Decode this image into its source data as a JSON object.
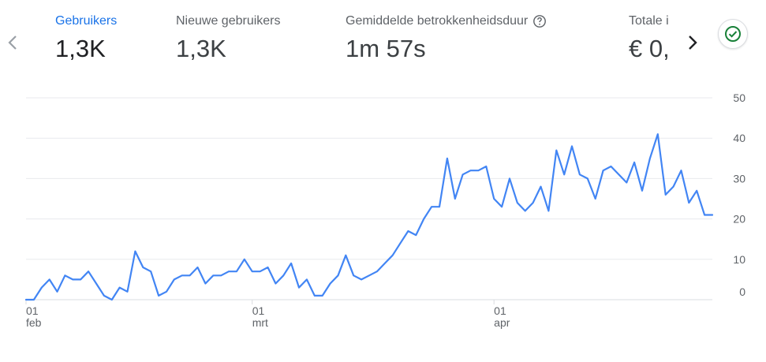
{
  "metrics": [
    {
      "label": "Gebruikers",
      "value": "1,3K",
      "active": true
    },
    {
      "label": "Nieuwe gebruikers",
      "value": "1,3K",
      "active": false
    },
    {
      "label": "Gemiddelde betrokkenheidsduur",
      "value": "1m 57s",
      "active": false,
      "help_icon": "help-circle-icon"
    },
    {
      "label": "Totale i",
      "value": "€ 0,",
      "active": false
    }
  ],
  "icons": {
    "prev": "chevron-left-icon",
    "next": "chevron-right-icon",
    "status": "check-circle-icon"
  },
  "colors": {
    "accent": "#1a73e8",
    "line": "#4285f4",
    "status_green": "#188038"
  },
  "chart_data": {
    "type": "line",
    "x_start": "2024-02-01",
    "x_ticks": [
      {
        "day": "01",
        "month": "feb",
        "date": "2024-02-01"
      },
      {
        "day": "01",
        "month": "mrt",
        "date": "2024-03-01"
      },
      {
        "day": "01",
        "month": "apr",
        "date": "2024-04-01"
      }
    ],
    "ylim": [
      0,
      50
    ],
    "yticks": [
      "50",
      "40",
      "30",
      "20",
      "10",
      "0"
    ],
    "ytick_values": [
      50,
      40,
      30,
      20,
      10,
      0
    ],
    "grid": true,
    "y_axis_position": "right",
    "series": [
      {
        "values": [
          0,
          0,
          3,
          5,
          2,
          6,
          5,
          5,
          7,
          4,
          1,
          0,
          3,
          2,
          12,
          8,
          7,
          1,
          2,
          5,
          6,
          6,
          8,
          4,
          6,
          6,
          7,
          7,
          10,
          7,
          7,
          8,
          4,
          6,
          9,
          3,
          5,
          1,
          1,
          4,
          6,
          11,
          6,
          5,
          6,
          7,
          9,
          11,
          14,
          17,
          16,
          20,
          23,
          23,
          35,
          25,
          31,
          32,
          32,
          33,
          25,
          23,
          30,
          24,
          22,
          24,
          28,
          22,
          37,
          31,
          38,
          31,
          30,
          25,
          32,
          33,
          31,
          29,
          34,
          27,
          35,
          41,
          26,
          28,
          32,
          24,
          27,
          21,
          21
        ]
      }
    ]
  }
}
